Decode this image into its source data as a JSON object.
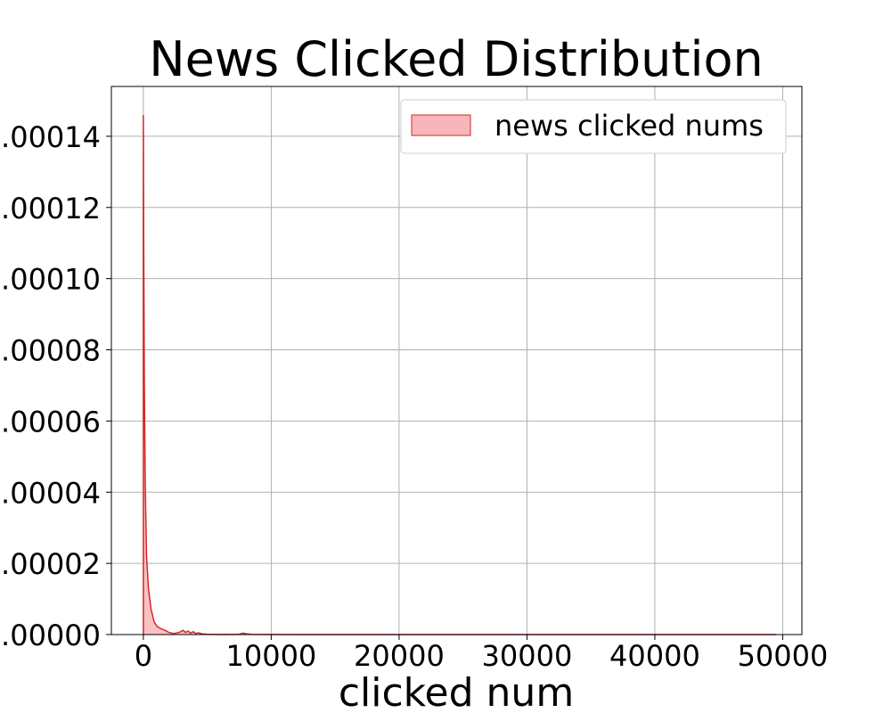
{
  "chart_data": {
    "type": "area",
    "title": "News Clicked Distribution",
    "xlabel": "clicked num",
    "ylabel": "",
    "xlim": [
      -2500,
      51500
    ],
    "ylim": [
      0,
      0.000154
    ],
    "xticks": [
      0,
      10000,
      20000,
      30000,
      40000,
      50000
    ],
    "xtick_labels": [
      "0",
      "10000",
      "20000",
      "30000",
      "40000",
      "50000"
    ],
    "yticks": [
      0,
      2e-05,
      4e-05,
      6e-05,
      8e-05,
      0.0001,
      0.00012,
      0.00014
    ],
    "ytick_labels": [
      ".00000",
      ".00002",
      ".00004",
      ".00006",
      ".00008",
      ".00010",
      ".00012",
      ".00014"
    ],
    "grid": true,
    "legend_position": "top-right",
    "series": [
      {
        "name": "news clicked nums",
        "color": "#d62728",
        "fill_color": "#f7b6b9",
        "x": [
          0,
          0,
          30,
          80,
          150,
          250,
          400,
          600,
          850,
          1100,
          1400,
          1700,
          2000,
          2400,
          2800,
          3100,
          3300,
          3500,
          3700,
          3900,
          4100,
          4300,
          4600,
          5000,
          5500,
          6000,
          6500,
          7000,
          7500,
          7800,
          8100,
          8500,
          9500,
          12000,
          20000,
          30000,
          40000,
          49500
        ],
        "y": [
          0,
          0.000146,
          0.00011,
          7e-05,
          4.2e-05,
          2.2e-05,
          1.3e-05,
          7.2e-06,
          3.5e-06,
          2.2e-06,
          1.6e-06,
          1.2e-06,
          6e-07,
          3e-07,
          6e-07,
          1.2e-06,
          6e-07,
          1e-06,
          4e-07,
          8e-07,
          3e-07,
          5e-07,
          2e-07,
          1e-07,
          5e-08,
          3e-08,
          5e-08,
          2e-08,
          1e-07,
          4e-07,
          2e-07,
          5e-08,
          2e-08,
          1e-08,
          0,
          0,
          0,
          0
        ]
      }
    ]
  }
}
